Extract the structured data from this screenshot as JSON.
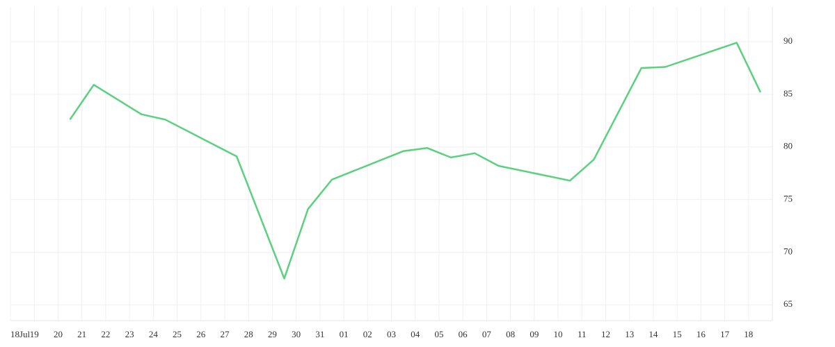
{
  "chart_data": {
    "type": "line",
    "x": [
      2.5,
      3.5,
      5.5,
      6.5,
      9.5,
      11.5,
      12.5,
      13.5,
      16.5,
      17.5,
      18.5,
      19.5,
      20.5,
      23.5,
      24.5,
      26.5,
      27.5,
      30.5,
      31.5
    ],
    "values": [
      82.6,
      85.9,
      83.1,
      82.6,
      79.1,
      67.5,
      74.1,
      76.9,
      79.6,
      79.9,
      79.0,
      79.4,
      78.2,
      76.8,
      78.8,
      87.5,
      87.6,
      89.9,
      85.2
    ],
    "color": "#5ad17d",
    "xlim": [
      0,
      32
    ],
    "xticks": [
      {
        "value": 0,
        "label": "18Jul"
      },
      {
        "value": 1,
        "label": "19"
      },
      {
        "value": 2,
        "label": "20"
      },
      {
        "value": 3,
        "label": "21"
      },
      {
        "value": 4,
        "label": "22"
      },
      {
        "value": 5,
        "label": "23"
      },
      {
        "value": 6,
        "label": "24"
      },
      {
        "value": 7,
        "label": "25"
      },
      {
        "value": 8,
        "label": "26"
      },
      {
        "value": 9,
        "label": "27"
      },
      {
        "value": 10,
        "label": "28"
      },
      {
        "value": 11,
        "label": "29"
      },
      {
        "value": 12,
        "label": "30"
      },
      {
        "value": 13,
        "label": "31"
      },
      {
        "value": 14,
        "label": "01"
      },
      {
        "value": 15,
        "label": "02"
      },
      {
        "value": 16,
        "label": "03"
      },
      {
        "value": 17,
        "label": "04"
      },
      {
        "value": 18,
        "label": "05"
      },
      {
        "value": 19,
        "label": "06"
      },
      {
        "value": 20,
        "label": "07"
      },
      {
        "value": 21,
        "label": "08"
      },
      {
        "value": 22,
        "label": "09"
      },
      {
        "value": 23,
        "label": "10"
      },
      {
        "value": 24,
        "label": "11"
      },
      {
        "value": 25,
        "label": "12"
      },
      {
        "value": 26,
        "label": "13"
      },
      {
        "value": 27,
        "label": "14"
      },
      {
        "value": 28,
        "label": "15"
      },
      {
        "value": 29,
        "label": "16"
      },
      {
        "value": 30,
        "label": "17"
      },
      {
        "value": 31,
        "label": "18"
      }
    ],
    "ylim": [
      63.5,
      93.3
    ],
    "yticks": [
      65,
      70,
      75,
      80,
      85,
      90
    ],
    "grid": true
  }
}
